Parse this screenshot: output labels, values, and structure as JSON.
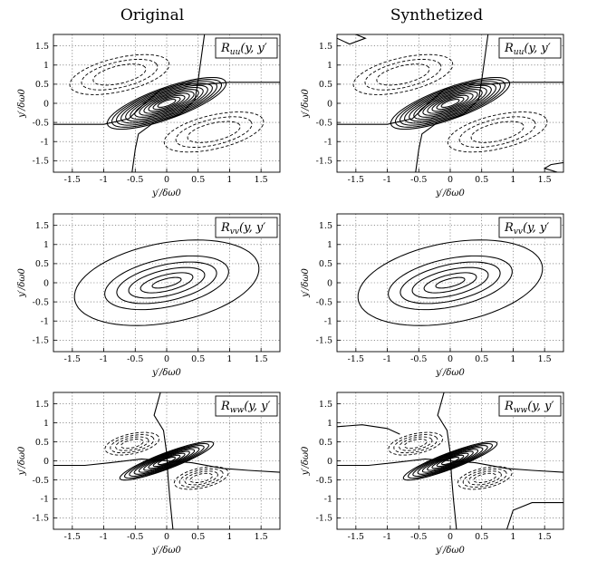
{
  "column_titles": [
    "Original",
    "Synthetized"
  ],
  "chart_data": [
    {
      "type": "contour",
      "panel_label": "R_uu(y, y')",
      "label_main": "R",
      "label_sub": "uu",
      "label_args": "(y, y′",
      "column": "Original",
      "row": 1,
      "xlabel": "y′/δω0",
      "ylabel": "y′/δω0",
      "xlim": [
        -1.8,
        1.8
      ],
      "ylim": [
        -1.8,
        1.8
      ],
      "xticks": [
        -1.5,
        -1,
        -0.5,
        0,
        0.5,
        1,
        1.5
      ],
      "yticks": [
        -1.5,
        -1,
        -0.5,
        0,
        0.5,
        1,
        1.5
      ],
      "grid": true,
      "legend": "top-right"
    },
    {
      "type": "contour",
      "panel_label": "R_uu(y, y')",
      "label_main": "R",
      "label_sub": "uu",
      "label_args": "(y, y′",
      "column": "Synthetized",
      "row": 1,
      "xlabel": "y′/δω0",
      "ylabel": "y′/δω0",
      "xlim": [
        -1.8,
        1.8
      ],
      "ylim": [
        -1.8,
        1.8
      ],
      "xticks": [
        -1.5,
        -1,
        -0.5,
        0,
        0.5,
        1,
        1.5
      ],
      "yticks": [
        -1.5,
        -1,
        -0.5,
        0,
        0.5,
        1,
        1.5
      ],
      "grid": true,
      "legend": "top-right"
    },
    {
      "type": "contour",
      "panel_label": "R_vv(y, y')",
      "label_main": "R",
      "label_sub": "vv",
      "label_args": "(y, y′",
      "column": "Original",
      "row": 2,
      "xlabel": "y′/δω0",
      "ylabel": "y′/δω0",
      "xlim": [
        -1.8,
        1.8
      ],
      "ylim": [
        -1.8,
        1.8
      ],
      "xticks": [
        -1.5,
        -1,
        -0.5,
        0,
        0.5,
        1,
        1.5
      ],
      "yticks": [
        -1.5,
        -1,
        -0.5,
        0,
        0.5,
        1,
        1.5
      ],
      "grid": true,
      "legend": "top-right"
    },
    {
      "type": "contour",
      "panel_label": "R_vv(y, y')",
      "label_main": "R",
      "label_sub": "vv",
      "label_args": "(y, y′",
      "column": "Synthetized",
      "row": 2,
      "xlabel": "y′/δω0",
      "ylabel": "y′/δω0",
      "xlim": [
        -1.8,
        1.8
      ],
      "ylim": [
        -1.8,
        1.8
      ],
      "xticks": [
        -1.5,
        -1,
        -0.5,
        0,
        0.5,
        1,
        1.5
      ],
      "yticks": [
        -1.5,
        -1,
        -0.5,
        0,
        0.5,
        1,
        1.5
      ],
      "grid": true,
      "legend": "top-right"
    },
    {
      "type": "contour",
      "panel_label": "R_ww(y, y')",
      "label_main": "R",
      "label_sub": "ww",
      "label_args": "(y, y′",
      "column": "Original",
      "row": 3,
      "xlabel": "y′/δω0",
      "ylabel": "y′/δω0",
      "xlim": [
        -1.8,
        1.8
      ],
      "ylim": [
        -1.8,
        1.8
      ],
      "xticks": [
        -1.5,
        -1,
        -0.5,
        0,
        0.5,
        1,
        1.5
      ],
      "yticks": [
        -1.5,
        -1,
        -0.5,
        0,
        0.5,
        1,
        1.5
      ],
      "grid": true,
      "legend": "top-right"
    },
    {
      "type": "contour",
      "panel_label": "R_ww(y, y')",
      "label_main": "R",
      "label_sub": "ww",
      "label_args": "(y, y′",
      "column": "Synthetized",
      "row": 3,
      "xlabel": "y′/δω0",
      "ylabel": "y′/δω0",
      "xlim": [
        -1.8,
        1.8
      ],
      "ylim": [
        -1.8,
        1.8
      ],
      "xticks": [
        -1.5,
        -1,
        -0.5,
        0,
        0.5,
        1,
        1.5
      ],
      "yticks": [
        -1.5,
        -1,
        -0.5,
        0,
        0.5,
        1,
        1.5
      ],
      "grid": true,
      "legend": "top-right"
    }
  ],
  "axis_label_parts": {
    "main": "y′/δ",
    "sub": "ω",
    "subsub": "0"
  }
}
